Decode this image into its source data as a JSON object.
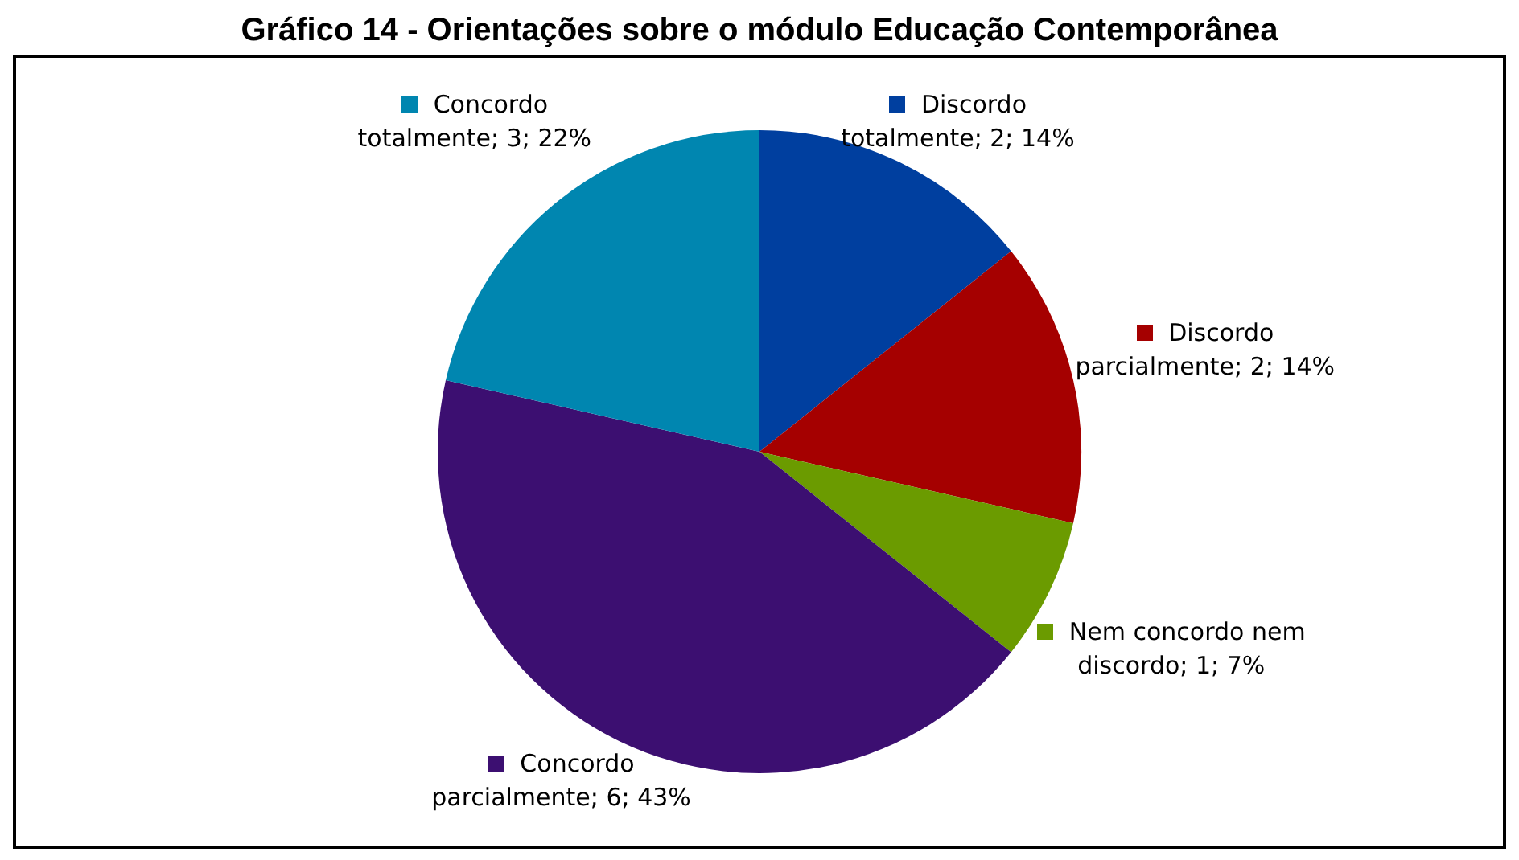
{
  "chart_data": {
    "type": "pie",
    "title": "Gráfico 14 - Orientações sobre o módulo Educação Contemporânea",
    "categories": [
      "Discordo totalmente",
      "Discordo parcialmente",
      "Nem concordo nem discordo",
      "Concordo parcialmente",
      "Concordo totalmente"
    ],
    "values": [
      2,
      2,
      1,
      6,
      3
    ],
    "value_labels": [
      "2; 14%",
      "2; 14%",
      "1; 7%",
      "6; 43%",
      "3; 22%"
    ],
    "colors": [
      "#003f9f",
      "#a50000",
      "#6b9b00",
      "#3c0f71",
      "#0086b0"
    ],
    "legend": "right"
  }
}
